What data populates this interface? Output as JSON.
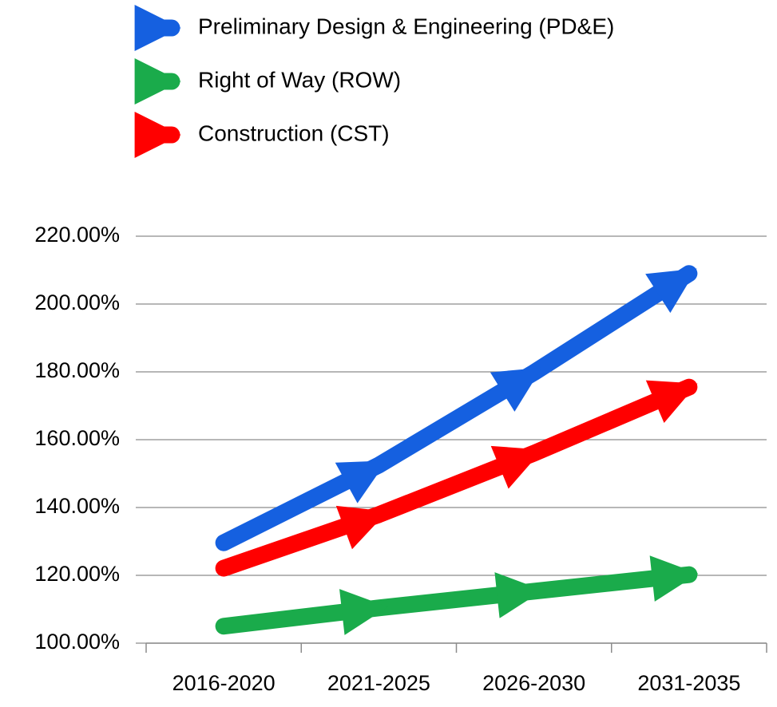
{
  "chart_data": {
    "type": "line",
    "categories": [
      "2016-2020",
      "2021-2025",
      "2026-2030",
      "2031-2035"
    ],
    "series": [
      {
        "name": "Preliminary Design & Engineering (PD&E)",
        "color": "#1560e0",
        "values": [
          129.6,
          152.5,
          179.8,
          209
        ]
      },
      {
        "name": "Right of Way (ROW)",
        "color": "#1aab4b",
        "values": [
          105,
          110.4,
          115.3,
          120.2
        ]
      },
      {
        "name": "Construction (CST)",
        "color": "#ff0000",
        "values": [
          122.1,
          137.9,
          156,
          175.5
        ]
      }
    ],
    "ylim": [
      100,
      220
    ],
    "yticks": [
      {
        "value": 100,
        "label": "100.00%"
      },
      {
        "value": 120,
        "label": "120.00%"
      },
      {
        "value": 140,
        "label": "140.00%"
      },
      {
        "value": 160,
        "label": "160.00%"
      },
      {
        "value": 180,
        "label": "180.00%"
      },
      {
        "value": 200,
        "label": "200.00%"
      },
      {
        "value": 220,
        "label": "220.00%"
      }
    ],
    "grid": true,
    "legend": "top"
  }
}
